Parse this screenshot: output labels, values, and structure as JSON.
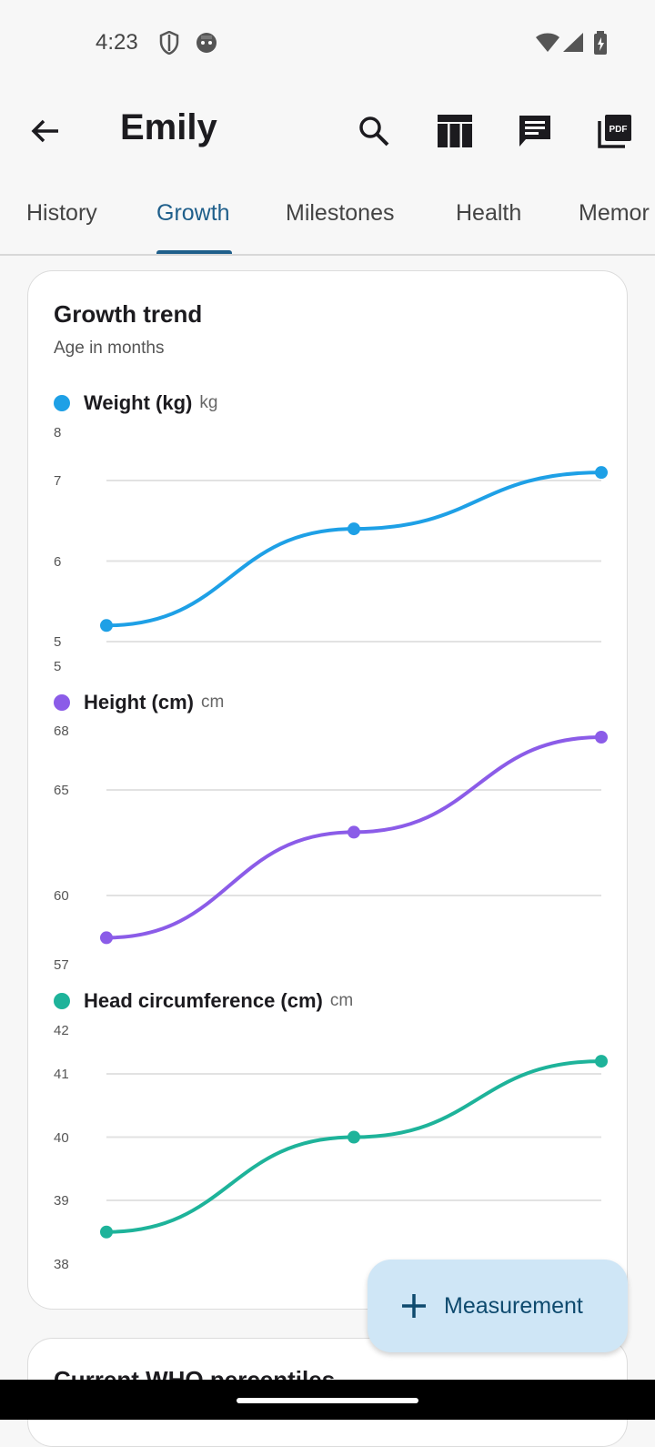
{
  "status": {
    "time": "4:23"
  },
  "appbar": {
    "title": "Emily"
  },
  "tabs": [
    {
      "label": "History",
      "active": false
    },
    {
      "label": "Growth",
      "active": true
    },
    {
      "label": "Milestones",
      "active": false
    },
    {
      "label": "Health",
      "active": false
    },
    {
      "label": "Memor",
      "active": false
    }
  ],
  "card": {
    "title": "Growth trend",
    "subtitle": "Age in months"
  },
  "chart_data": [
    {
      "type": "line",
      "series": [
        {
          "name": "Weight (kg)",
          "values": [
            5.2,
            6.4,
            7.1
          ]
        }
      ],
      "unit": "kg",
      "color": "#1ea0e6",
      "ylim": [
        5,
        8
      ],
      "yticks": [
        "8",
        "7",
        "6",
        "5",
        "5"
      ]
    },
    {
      "type": "line",
      "series": [
        {
          "name": "Height (cm)",
          "values": [
            58,
            63,
            67.5
          ]
        }
      ],
      "unit": "cm",
      "color": "#8b5ce8",
      "ylim": [
        57,
        68
      ],
      "yticks": [
        "68",
        "65",
        "60",
        "57"
      ]
    },
    {
      "type": "line",
      "series": [
        {
          "name": "Head circumference (cm)",
          "values": [
            38.5,
            40,
            41.2
          ]
        }
      ],
      "unit": "cm",
      "color": "#1eb39a",
      "ylim": [
        38,
        42
      ],
      "yticks": [
        "42",
        "41",
        "40",
        "39",
        "38"
      ]
    }
  ],
  "card2": {
    "title": "Current WHO percentiles"
  },
  "fab": {
    "label": "Measurement"
  }
}
